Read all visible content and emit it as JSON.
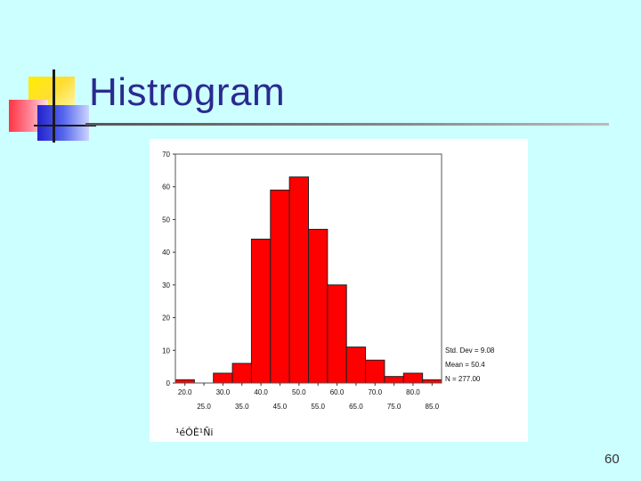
{
  "slide": {
    "title": "Histrogram",
    "page_number": "60"
  },
  "chart_data": {
    "type": "bar",
    "ylim": [
      0,
      70
    ],
    "y_ticks": [
      "0",
      "10",
      "20",
      "30",
      "40",
      "50",
      "60",
      "70"
    ],
    "x_ticks_top": [
      "20.0",
      "30.0",
      "40.0",
      "50.0",
      "60.0",
      "70.0",
      "80.0"
    ],
    "x_ticks_bottom": [
      "25.0",
      "35.0",
      "45.0",
      "55.0",
      "65.0",
      "75.0",
      "85.0"
    ],
    "bins": [
      {
        "from": 17.5,
        "to": 22.5,
        "count": 1
      },
      {
        "from": 22.5,
        "to": 27.5,
        "count": 0
      },
      {
        "from": 27.5,
        "to": 32.5,
        "count": 3
      },
      {
        "from": 32.5,
        "to": 37.5,
        "count": 6
      },
      {
        "from": 37.5,
        "to": 42.5,
        "count": 44
      },
      {
        "from": 42.5,
        "to": 47.5,
        "count": 59
      },
      {
        "from": 47.5,
        "to": 52.5,
        "count": 63
      },
      {
        "from": 52.5,
        "to": 57.5,
        "count": 47
      },
      {
        "from": 57.5,
        "to": 62.5,
        "count": 30
      },
      {
        "from": 62.5,
        "to": 67.5,
        "count": 11
      },
      {
        "from": 67.5,
        "to": 72.5,
        "count": 7
      },
      {
        "from": 72.5,
        "to": 77.5,
        "count": 2
      },
      {
        "from": 77.5,
        "to": 82.5,
        "count": 3
      },
      {
        "from": 82.5,
        "to": 87.5,
        "count": 1
      }
    ],
    "xlim": [
      17.5,
      87.5
    ],
    "stats": {
      "std_dev": "Std. Dev = 9.08",
      "mean": "Mean = 50.4",
      "n": "N = 277.00"
    },
    "xlabel": "¹éÓÈ¹Ñi",
    "bar_color": "#ff0000",
    "grid": false
  }
}
